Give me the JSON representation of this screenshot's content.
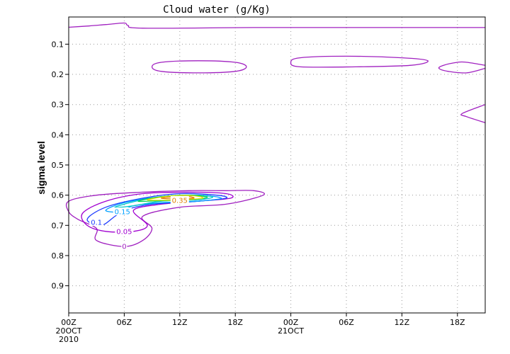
{
  "chart_data": {
    "type": "contour",
    "title": "Cloud water (g/Kg)",
    "ylabel": "sigma level",
    "xlabel": "",
    "x_ticks": [
      {
        "label": "00Z",
        "sub": [
          "20OCT",
          "2010"
        ],
        "hour": 0
      },
      {
        "label": "06Z",
        "hour": 6
      },
      {
        "label": "12Z",
        "hour": 12
      },
      {
        "label": "18Z",
        "hour": 18
      },
      {
        "label": "00Z",
        "sub": [
          "21OCT"
        ],
        "hour": 24
      },
      {
        "label": "06Z",
        "hour": 30
      },
      {
        "label": "12Z",
        "hour": 36
      },
      {
        "label": "18Z",
        "hour": 42
      }
    ],
    "xlim_hours": [
      0,
      45
    ],
    "y_ticks": [
      "0.1",
      "0.2",
      "0.3",
      "0.4",
      "0.5",
      "0.6",
      "0.7",
      "0.8",
      "0.9"
    ],
    "ylim": [
      0.01,
      0.99
    ],
    "y_inverted": true,
    "grid": true,
    "contour_levels": [
      {
        "value": 0,
        "label": "0",
        "color": "#a020c0"
      },
      {
        "value": 0.05,
        "label": "0.05",
        "color": "#a000d0"
      },
      {
        "value": 0.1,
        "label": "0.1",
        "color": "#1e3cff"
      },
      {
        "value": 0.15,
        "label": "0.15",
        "color": "#00a0ff"
      },
      {
        "value": 0.2,
        "label": "0.2",
        "color": "#00c8c8"
      },
      {
        "value": 0.25,
        "label": "0.25",
        "color": "#00d050"
      },
      {
        "value": 0.3,
        "label": "0.3",
        "color": "#e0e000"
      },
      {
        "value": 0.35,
        "label": "0.35",
        "color": "#e08000"
      }
    ],
    "contours": [
      {
        "level": 0,
        "closed": false,
        "points": [
          [
            0,
            0.044
          ],
          [
            2,
            0.04
          ],
          [
            4,
            0.035
          ],
          [
            6,
            0.03
          ],
          [
            6.4,
            0.038
          ],
          [
            8,
            0.047
          ],
          [
            20,
            0.045
          ],
          [
            30,
            0.045
          ],
          [
            45,
            0.045
          ]
        ]
      },
      {
        "level": 0,
        "closed": true,
        "points": [
          [
            9,
            0.175
          ],
          [
            10,
            0.16
          ],
          [
            14,
            0.155
          ],
          [
            18,
            0.16
          ],
          [
            19.2,
            0.175
          ],
          [
            18,
            0.19
          ],
          [
            14,
            0.195
          ],
          [
            10,
            0.19
          ]
        ]
      },
      {
        "level": 0,
        "closed": true,
        "points": [
          [
            24,
            0.16
          ],
          [
            25,
            0.145
          ],
          [
            30,
            0.14
          ],
          [
            36,
            0.145
          ],
          [
            38.8,
            0.155
          ],
          [
            37,
            0.17
          ],
          [
            31,
            0.175
          ],
          [
            25,
            0.175
          ]
        ]
      },
      {
        "level": 0,
        "closed": false,
        "points": [
          [
            45,
            0.17
          ],
          [
            43,
            0.16
          ],
          [
            42,
            0.16
          ],
          [
            40.5,
            0.17
          ],
          [
            40,
            0.18
          ],
          [
            41,
            0.19
          ],
          [
            43,
            0.195
          ],
          [
            45,
            0.18
          ]
        ]
      },
      {
        "level": 0,
        "closed": false,
        "points": [
          [
            45,
            0.3
          ],
          [
            42.5,
            0.33
          ],
          [
            43,
            0.34
          ],
          [
            45,
            0.36
          ]
        ]
      },
      {
        "level": 0,
        "closed": true,
        "points": [
          [
            0,
            0.62
          ],
          [
            3,
            0.6
          ],
          [
            8,
            0.59
          ],
          [
            13,
            0.585
          ],
          [
            17,
            0.585
          ],
          [
            20,
            0.585
          ],
          [
            21,
            0.6
          ],
          [
            17,
            0.63
          ],
          [
            12,
            0.64
          ],
          [
            8,
            0.67
          ],
          [
            9,
            0.71
          ],
          [
            8,
            0.75
          ],
          [
            6,
            0.77
          ],
          [
            3,
            0.75
          ],
          [
            3,
            0.71
          ],
          [
            1,
            0.68
          ],
          [
            0,
            0.655
          ]
        ]
      },
      {
        "level": 0.05,
        "closed": true,
        "points": [
          [
            1.5,
            0.66
          ],
          [
            4,
            0.62
          ],
          [
            8,
            0.595
          ],
          [
            13,
            0.59
          ],
          [
            17,
            0.595
          ],
          [
            17.5,
            0.61
          ],
          [
            14,
            0.62
          ],
          [
            10,
            0.63
          ],
          [
            7,
            0.65
          ],
          [
            8.5,
            0.7
          ],
          [
            7,
            0.72
          ],
          [
            4,
            0.72
          ],
          [
            2,
            0.7
          ]
        ]
      },
      {
        "level": 0.1,
        "closed": true,
        "points": [
          [
            2,
            0.68
          ],
          [
            4,
            0.64
          ],
          [
            8,
            0.61
          ],
          [
            12,
            0.595
          ],
          [
            16,
            0.6
          ],
          [
            17,
            0.61
          ],
          [
            14,
            0.62
          ],
          [
            9,
            0.63
          ],
          [
            6,
            0.65
          ],
          [
            5,
            0.67
          ],
          [
            3.5,
            0.7
          ]
        ]
      },
      {
        "level": 0.15,
        "closed": true,
        "points": [
          [
            4,
            0.65
          ],
          [
            6,
            0.625
          ],
          [
            10,
            0.605
          ],
          [
            14,
            0.6
          ],
          [
            16.5,
            0.61
          ],
          [
            14,
            0.62
          ],
          [
            10,
            0.625
          ],
          [
            7,
            0.635
          ],
          [
            5.5,
            0.655
          ]
        ]
      },
      {
        "level": 0.2,
        "closed": true,
        "points": [
          [
            5,
            0.64
          ],
          [
            8,
            0.615
          ],
          [
            12,
            0.6
          ],
          [
            15.5,
            0.605
          ],
          [
            14,
            0.615
          ],
          [
            10,
            0.62
          ],
          [
            7,
            0.635
          ]
        ]
      },
      {
        "level": 0.25,
        "closed": true,
        "points": [
          [
            7.5,
            0.62
          ],
          [
            10,
            0.605
          ],
          [
            13,
            0.6
          ],
          [
            15,
            0.607
          ],
          [
            13,
            0.615
          ],
          [
            10,
            0.618
          ]
        ]
      },
      {
        "level": 0.3,
        "closed": true,
        "points": [
          [
            8.5,
            0.615
          ],
          [
            11,
            0.603
          ],
          [
            13.5,
            0.602
          ],
          [
            14.5,
            0.61
          ],
          [
            12.5,
            0.615
          ],
          [
            10,
            0.617
          ]
        ]
      },
      {
        "level": 0.35,
        "closed": true,
        "points": [
          [
            10,
            0.61
          ],
          [
            11.5,
            0.605
          ],
          [
            13,
            0.605
          ],
          [
            13.5,
            0.61
          ],
          [
            12,
            0.613
          ]
        ]
      }
    ],
    "labels": [
      {
        "text": "0",
        "x": 6,
        "y": 0.77,
        "level": 0
      },
      {
        "text": "0.05",
        "x": 6,
        "y": 0.72,
        "level": 0.05
      },
      {
        "text": "0.1",
        "x": 3,
        "y": 0.69,
        "level": 0.1
      },
      {
        "text": "0.15",
        "x": 5.8,
        "y": 0.655,
        "level": 0.15
      },
      {
        "text": "0.35",
        "x": 12,
        "y": 0.617,
        "level": 0.35
      }
    ]
  }
}
